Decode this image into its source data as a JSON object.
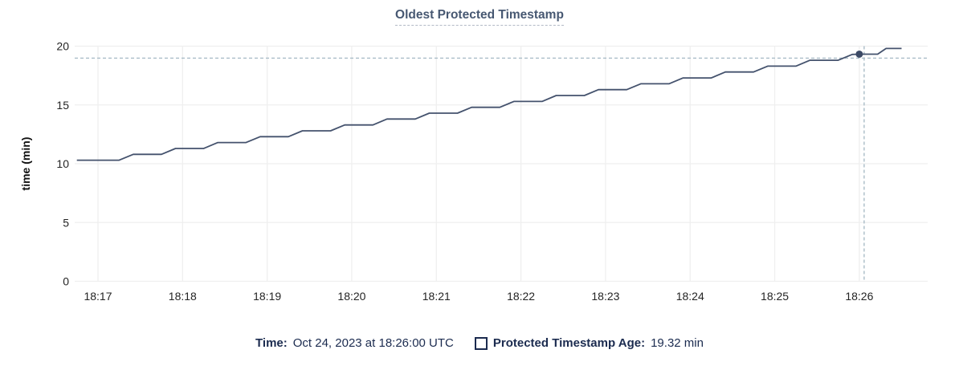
{
  "title": "Oldest Protected Timestamp",
  "chart_data": {
    "type": "line",
    "title": "Oldest Protected Timestamp",
    "xlabel": "",
    "ylabel": "time (min)",
    "ylim": [
      0,
      20
    ],
    "y_ticks": [
      0,
      5,
      10,
      15,
      20
    ],
    "x_ticks": [
      "18:17",
      "18:18",
      "18:19",
      "18:20",
      "18:21",
      "18:22",
      "18:23",
      "18:24",
      "18:25",
      "18:26"
    ],
    "x_tick_interval_seconds": 60,
    "grid": true,
    "legend_position": "bottom",
    "series": [
      {
        "name": "Protected Timestamp Age",
        "points_t_seconds_after_18_17": [
          [
            -15,
            10.3
          ],
          [
            15,
            10.3
          ],
          [
            25,
            10.8
          ],
          [
            45,
            10.8
          ],
          [
            55,
            11.3
          ],
          [
            75,
            11.3
          ],
          [
            85,
            11.8
          ],
          [
            105,
            11.8
          ],
          [
            115,
            12.3
          ],
          [
            135,
            12.3
          ],
          [
            145,
            12.8
          ],
          [
            165,
            12.8
          ],
          [
            175,
            13.3
          ],
          [
            195,
            13.3
          ],
          [
            205,
            13.8
          ],
          [
            225,
            13.8
          ],
          [
            235,
            14.3
          ],
          [
            255,
            14.3
          ],
          [
            265,
            14.8
          ],
          [
            285,
            14.8
          ],
          [
            295,
            15.3
          ],
          [
            315,
            15.3
          ],
          [
            325,
            15.8
          ],
          [
            345,
            15.8
          ],
          [
            355,
            16.3
          ],
          [
            375,
            16.3
          ],
          [
            385,
            16.8
          ],
          [
            405,
            16.8
          ],
          [
            415,
            17.3
          ],
          [
            435,
            17.3
          ],
          [
            445,
            17.8
          ],
          [
            465,
            17.8
          ],
          [
            475,
            18.3
          ],
          [
            495,
            18.3
          ],
          [
            505,
            18.8
          ],
          [
            525,
            18.8
          ],
          [
            535,
            19.3
          ],
          [
            540,
            19.32
          ],
          [
            553,
            19.32
          ],
          [
            559,
            19.8
          ],
          [
            570,
            19.8
          ]
        ]
      }
    ],
    "hover_point": {
      "t_seconds": 540,
      "value": 19.32,
      "x_label": "18:26",
      "time_label": "Oct 24, 2023 at 18:26:00 UTC",
      "value_label": "19.32 min"
    }
  },
  "legend": {
    "time_label": "Time:",
    "time_value": "Oct 24, 2023 at 18:26:00 UTC",
    "series_label": "Protected Timestamp Age:",
    "series_value": "19.32 min"
  },
  "colors": {
    "line": "#44526d",
    "marker": "#3c4a66",
    "grid": "#efefef",
    "crosshair": "#a9bcc7",
    "axis_text": "#242424",
    "axis_title_text": "#111111",
    "title_text": "#475872",
    "title_underline": "#b3bac6",
    "legend_text": "#1b2b4f",
    "background": "#ffffff"
  }
}
